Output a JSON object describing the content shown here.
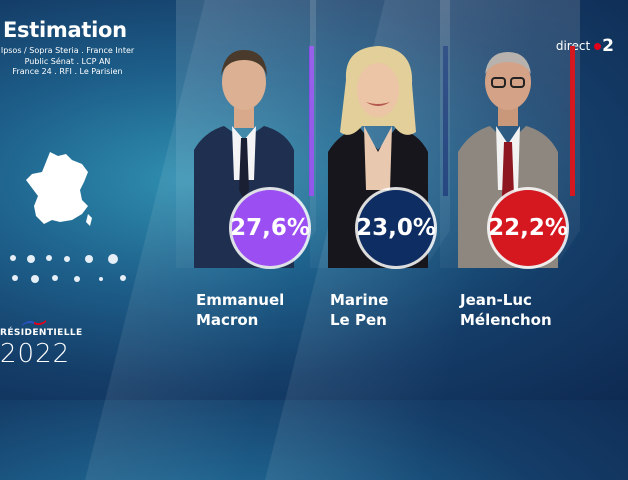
{
  "header": {
    "title": "Estimation",
    "sources": [
      "Ipsos / Sopra Steria . France Inter",
      "Public Sénat . LCP AN",
      "France 24 . RFI . Le Parisien"
    ]
  },
  "branding": {
    "channel_word": "direct",
    "channel_number": "2",
    "event_label": "RÉSIDENTIELLE",
    "event_year": "2022"
  },
  "candidates": [
    {
      "first": "Emmanuel",
      "last": "Macron",
      "percent": "27,6%",
      "color": "#9b4ff3",
      "bar_color": "#8a4be8"
    },
    {
      "first": "Marine",
      "last": "Le Pen",
      "percent": "23,0%",
      "color": "#0e2d63",
      "bar_color": "#173a78"
    },
    {
      "first": "Jean-Luc",
      "last": "Mélenchon",
      "percent": "22,2%",
      "color": "#d5171f",
      "bar_color": "#d5171f"
    }
  ]
}
